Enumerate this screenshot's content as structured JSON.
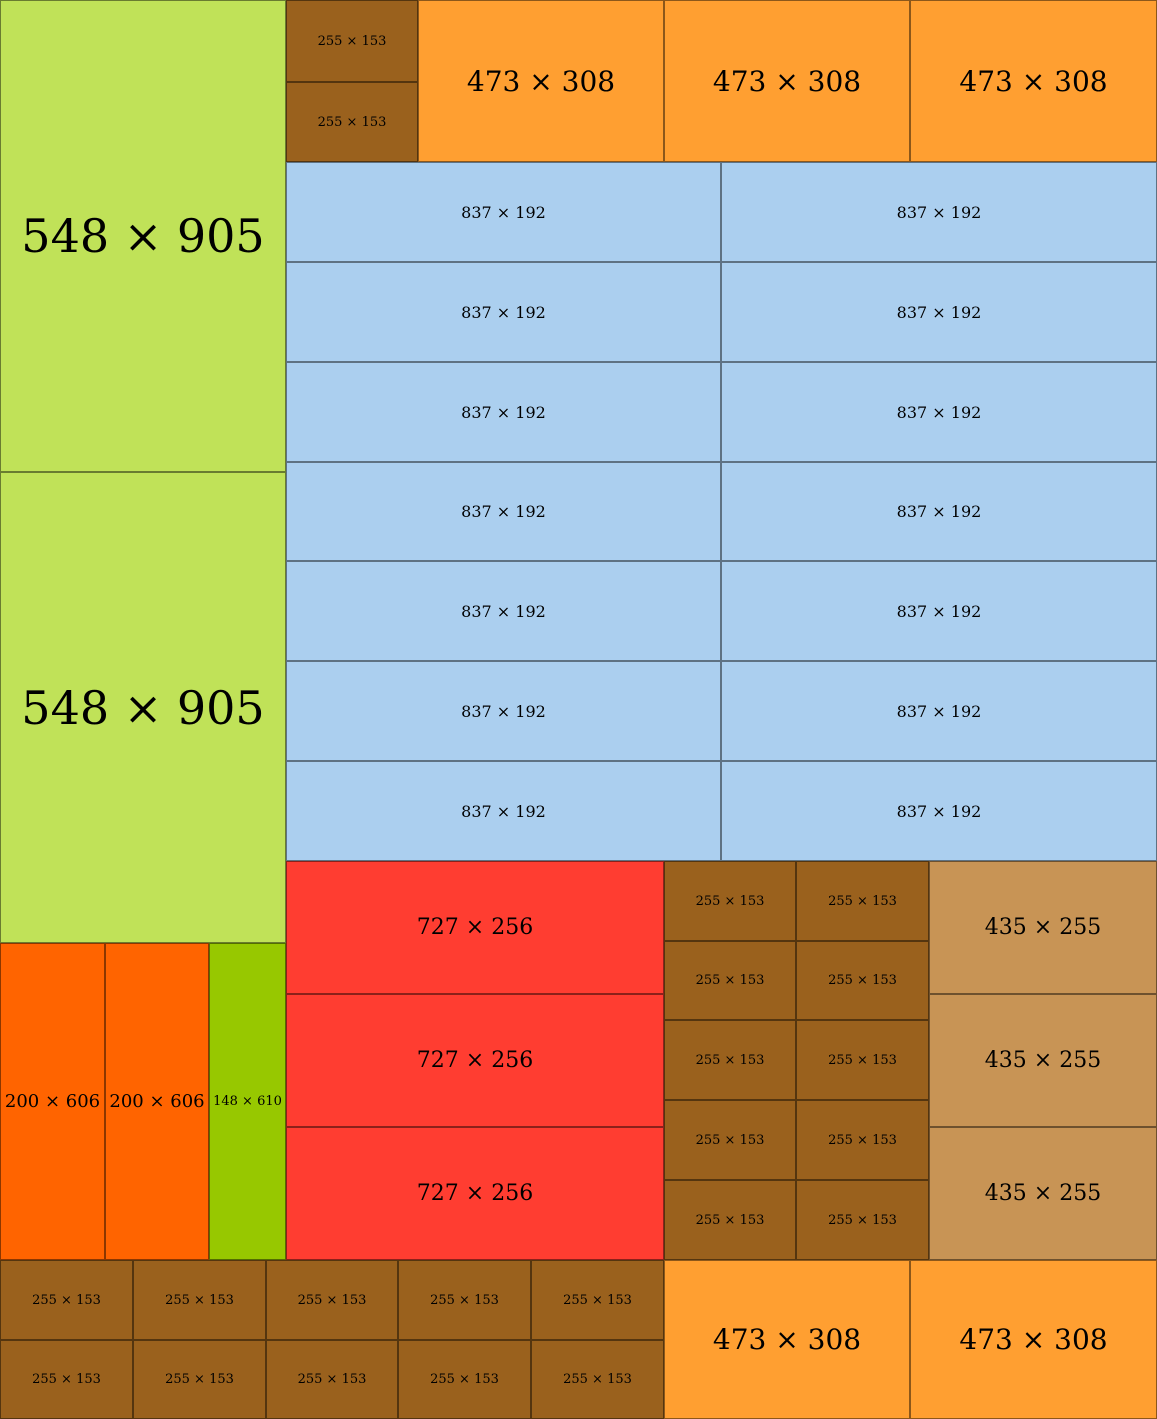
{
  "diagram": {
    "colors": {
      "green_light": "#c0e258",
      "green_dark": "#97c800",
      "brown": "#9a611d",
      "orange_light": "#ff9f31",
      "orange_dark": "#ff6400",
      "blue": "#abcfef",
      "red": "#ff3d31",
      "tan": "#c89455"
    },
    "pieces": [
      {
        "id": "p1",
        "label": "548 × 905",
        "color": "#c0e258"
      },
      {
        "id": "p2",
        "label": "548 × 905",
        "color": "#c0e258"
      },
      {
        "id": "p3",
        "label": "255 × 153",
        "color": "#9a611d"
      },
      {
        "id": "p4",
        "label": "255 × 153",
        "color": "#9a611d"
      },
      {
        "id": "p5",
        "label": "473 × 308",
        "color": "#ff9f31"
      },
      {
        "id": "p6",
        "label": "473 × 308",
        "color": "#ff9f31"
      },
      {
        "id": "p7",
        "label": "473 × 308",
        "color": "#ff9f31"
      },
      {
        "id": "p8",
        "label": "837 × 192",
        "color": "#abcfef"
      },
      {
        "id": "p9",
        "label": "837 × 192",
        "color": "#abcfef"
      },
      {
        "id": "p10",
        "label": "837 × 192",
        "color": "#abcfef"
      },
      {
        "id": "p11",
        "label": "837 × 192",
        "color": "#abcfef"
      },
      {
        "id": "p12",
        "label": "837 × 192",
        "color": "#abcfef"
      },
      {
        "id": "p13",
        "label": "837 × 192",
        "color": "#abcfef"
      },
      {
        "id": "p14",
        "label": "837 × 192",
        "color": "#abcfef"
      },
      {
        "id": "p15",
        "label": "837 × 192",
        "color": "#abcfef"
      },
      {
        "id": "p16",
        "label": "837 × 192",
        "color": "#abcfef"
      },
      {
        "id": "p17",
        "label": "837 × 192",
        "color": "#abcfef"
      },
      {
        "id": "p18",
        "label": "837 × 192",
        "color": "#abcfef"
      },
      {
        "id": "p19",
        "label": "837 × 192",
        "color": "#abcfef"
      },
      {
        "id": "p20",
        "label": "837 × 192",
        "color": "#abcfef"
      },
      {
        "id": "p21",
        "label": "837 × 192",
        "color": "#abcfef"
      },
      {
        "id": "p22",
        "label": "200 × 606",
        "color": "#ff6400"
      },
      {
        "id": "p23",
        "label": "200 × 606",
        "color": "#ff6400"
      },
      {
        "id": "p24",
        "label": "148 × 610",
        "color": "#97c800"
      },
      {
        "id": "p25",
        "label": "727 × 256",
        "color": "#ff3d31"
      },
      {
        "id": "p26",
        "label": "727 × 256",
        "color": "#ff3d31"
      },
      {
        "id": "p27",
        "label": "727 × 256",
        "color": "#ff3d31"
      },
      {
        "id": "p28",
        "label": "255 × 153",
        "color": "#9a611d"
      },
      {
        "id": "p29",
        "label": "255 × 153",
        "color": "#9a611d"
      },
      {
        "id": "p30",
        "label": "255 × 153",
        "color": "#9a611d"
      },
      {
        "id": "p31",
        "label": "255 × 153",
        "color": "#9a611d"
      },
      {
        "id": "p32",
        "label": "255 × 153",
        "color": "#9a611d"
      },
      {
        "id": "p33",
        "label": "255 × 153",
        "color": "#9a611d"
      },
      {
        "id": "p34",
        "label": "255 × 153",
        "color": "#9a611d"
      },
      {
        "id": "p35",
        "label": "255 × 153",
        "color": "#9a611d"
      },
      {
        "id": "p36",
        "label": "255 × 153",
        "color": "#9a611d"
      },
      {
        "id": "p37",
        "label": "255 × 153",
        "color": "#9a611d"
      },
      {
        "id": "p38",
        "label": "435 × 255",
        "color": "#c89455"
      },
      {
        "id": "p39",
        "label": "435 × 255",
        "color": "#c89455"
      },
      {
        "id": "p40",
        "label": "435 × 255",
        "color": "#c89455"
      },
      {
        "id": "p41",
        "label": "255 × 153",
        "color": "#9a611d"
      },
      {
        "id": "p42",
        "label": "255 × 153",
        "color": "#9a611d"
      },
      {
        "id": "p43",
        "label": "255 × 153",
        "color": "#9a611d"
      },
      {
        "id": "p44",
        "label": "255 × 153",
        "color": "#9a611d"
      },
      {
        "id": "p45",
        "label": "255 × 153",
        "color": "#9a611d"
      },
      {
        "id": "p46",
        "label": "255 × 153",
        "color": "#9a611d"
      },
      {
        "id": "p47",
        "label": "255 × 153",
        "color": "#9a611d"
      },
      {
        "id": "p48",
        "label": "255 × 153",
        "color": "#9a611d"
      },
      {
        "id": "p49",
        "label": "255 × 153",
        "color": "#9a611d"
      },
      {
        "id": "p50",
        "label": "255 × 153",
        "color": "#9a611d"
      },
      {
        "id": "p51",
        "label": "473 × 308",
        "color": "#ff9f31"
      },
      {
        "id": "p52",
        "label": "473 × 308",
        "color": "#ff9f31"
      }
    ]
  }
}
